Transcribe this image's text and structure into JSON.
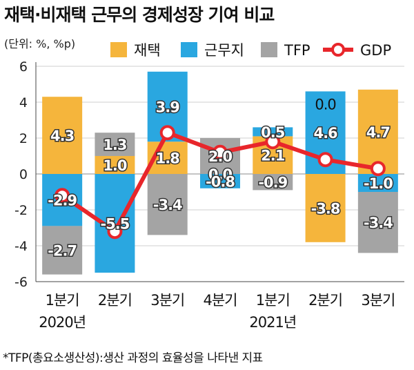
{
  "title": "재택·비재택 근무의 경제성장 기여 비교",
  "unit_note": "(단위: %, %p)",
  "footnote": "*TFP(총요소생산성):생산 과정의 효율성을 나타낸 지표",
  "colors": {
    "telework": "#f5b53c",
    "office": "#2aa7e0",
    "tfp": "#a4a4a4",
    "gdp": "#e8262b"
  },
  "chart_data": {
    "type": "bar",
    "categories": [
      "1분기",
      "2분기",
      "3분기",
      "4분기",
      "1분기",
      "2분기",
      "3분기"
    ],
    "year_labels": [
      {
        "label": "2020년",
        "category_index": 0
      },
      {
        "label": "2021년",
        "category_index": 4
      }
    ],
    "ylim": [
      -6,
      6
    ],
    "yticks": [
      -6,
      -4,
      -2,
      0,
      2,
      4,
      6
    ],
    "ytick_labels": [
      "-6",
      "-4",
      "-2",
      "0",
      "2",
      "4",
      "6"
    ],
    "grid": true,
    "legend_position": "top",
    "series": [
      {
        "name": "재택",
        "type": "bar",
        "values": [
          4.3,
          1.0,
          1.8,
          0.0,
          2.1,
          -3.8,
          4.7
        ],
        "labels": [
          "4.3",
          "1.0",
          "1.8",
          "0.0",
          "2.1",
          "-3.8",
          "4.7"
        ]
      },
      {
        "name": "근무지",
        "type": "bar",
        "values": [
          -2.9,
          -5.5,
          3.9,
          -0.8,
          0.5,
          4.6,
          -1.0
        ],
        "labels": [
          "-2.9",
          "-5.5",
          "3.9",
          "-0.8",
          "0.5",
          "4.6",
          "-1.0"
        ]
      },
      {
        "name": "TFP",
        "type": "bar",
        "values": [
          -2.7,
          1.3,
          -3.4,
          2.0,
          -0.9,
          0.0,
          -3.4
        ],
        "labels": [
          "-2.7",
          "1.3",
          "-3.4",
          "2.0",
          "-0.9",
          "0.0",
          "-3.4"
        ]
      },
      {
        "name": "GDP",
        "type": "line",
        "values": [
          -1.2,
          -3.2,
          2.3,
          1.2,
          1.8,
          0.8,
          0.3
        ]
      }
    ]
  }
}
